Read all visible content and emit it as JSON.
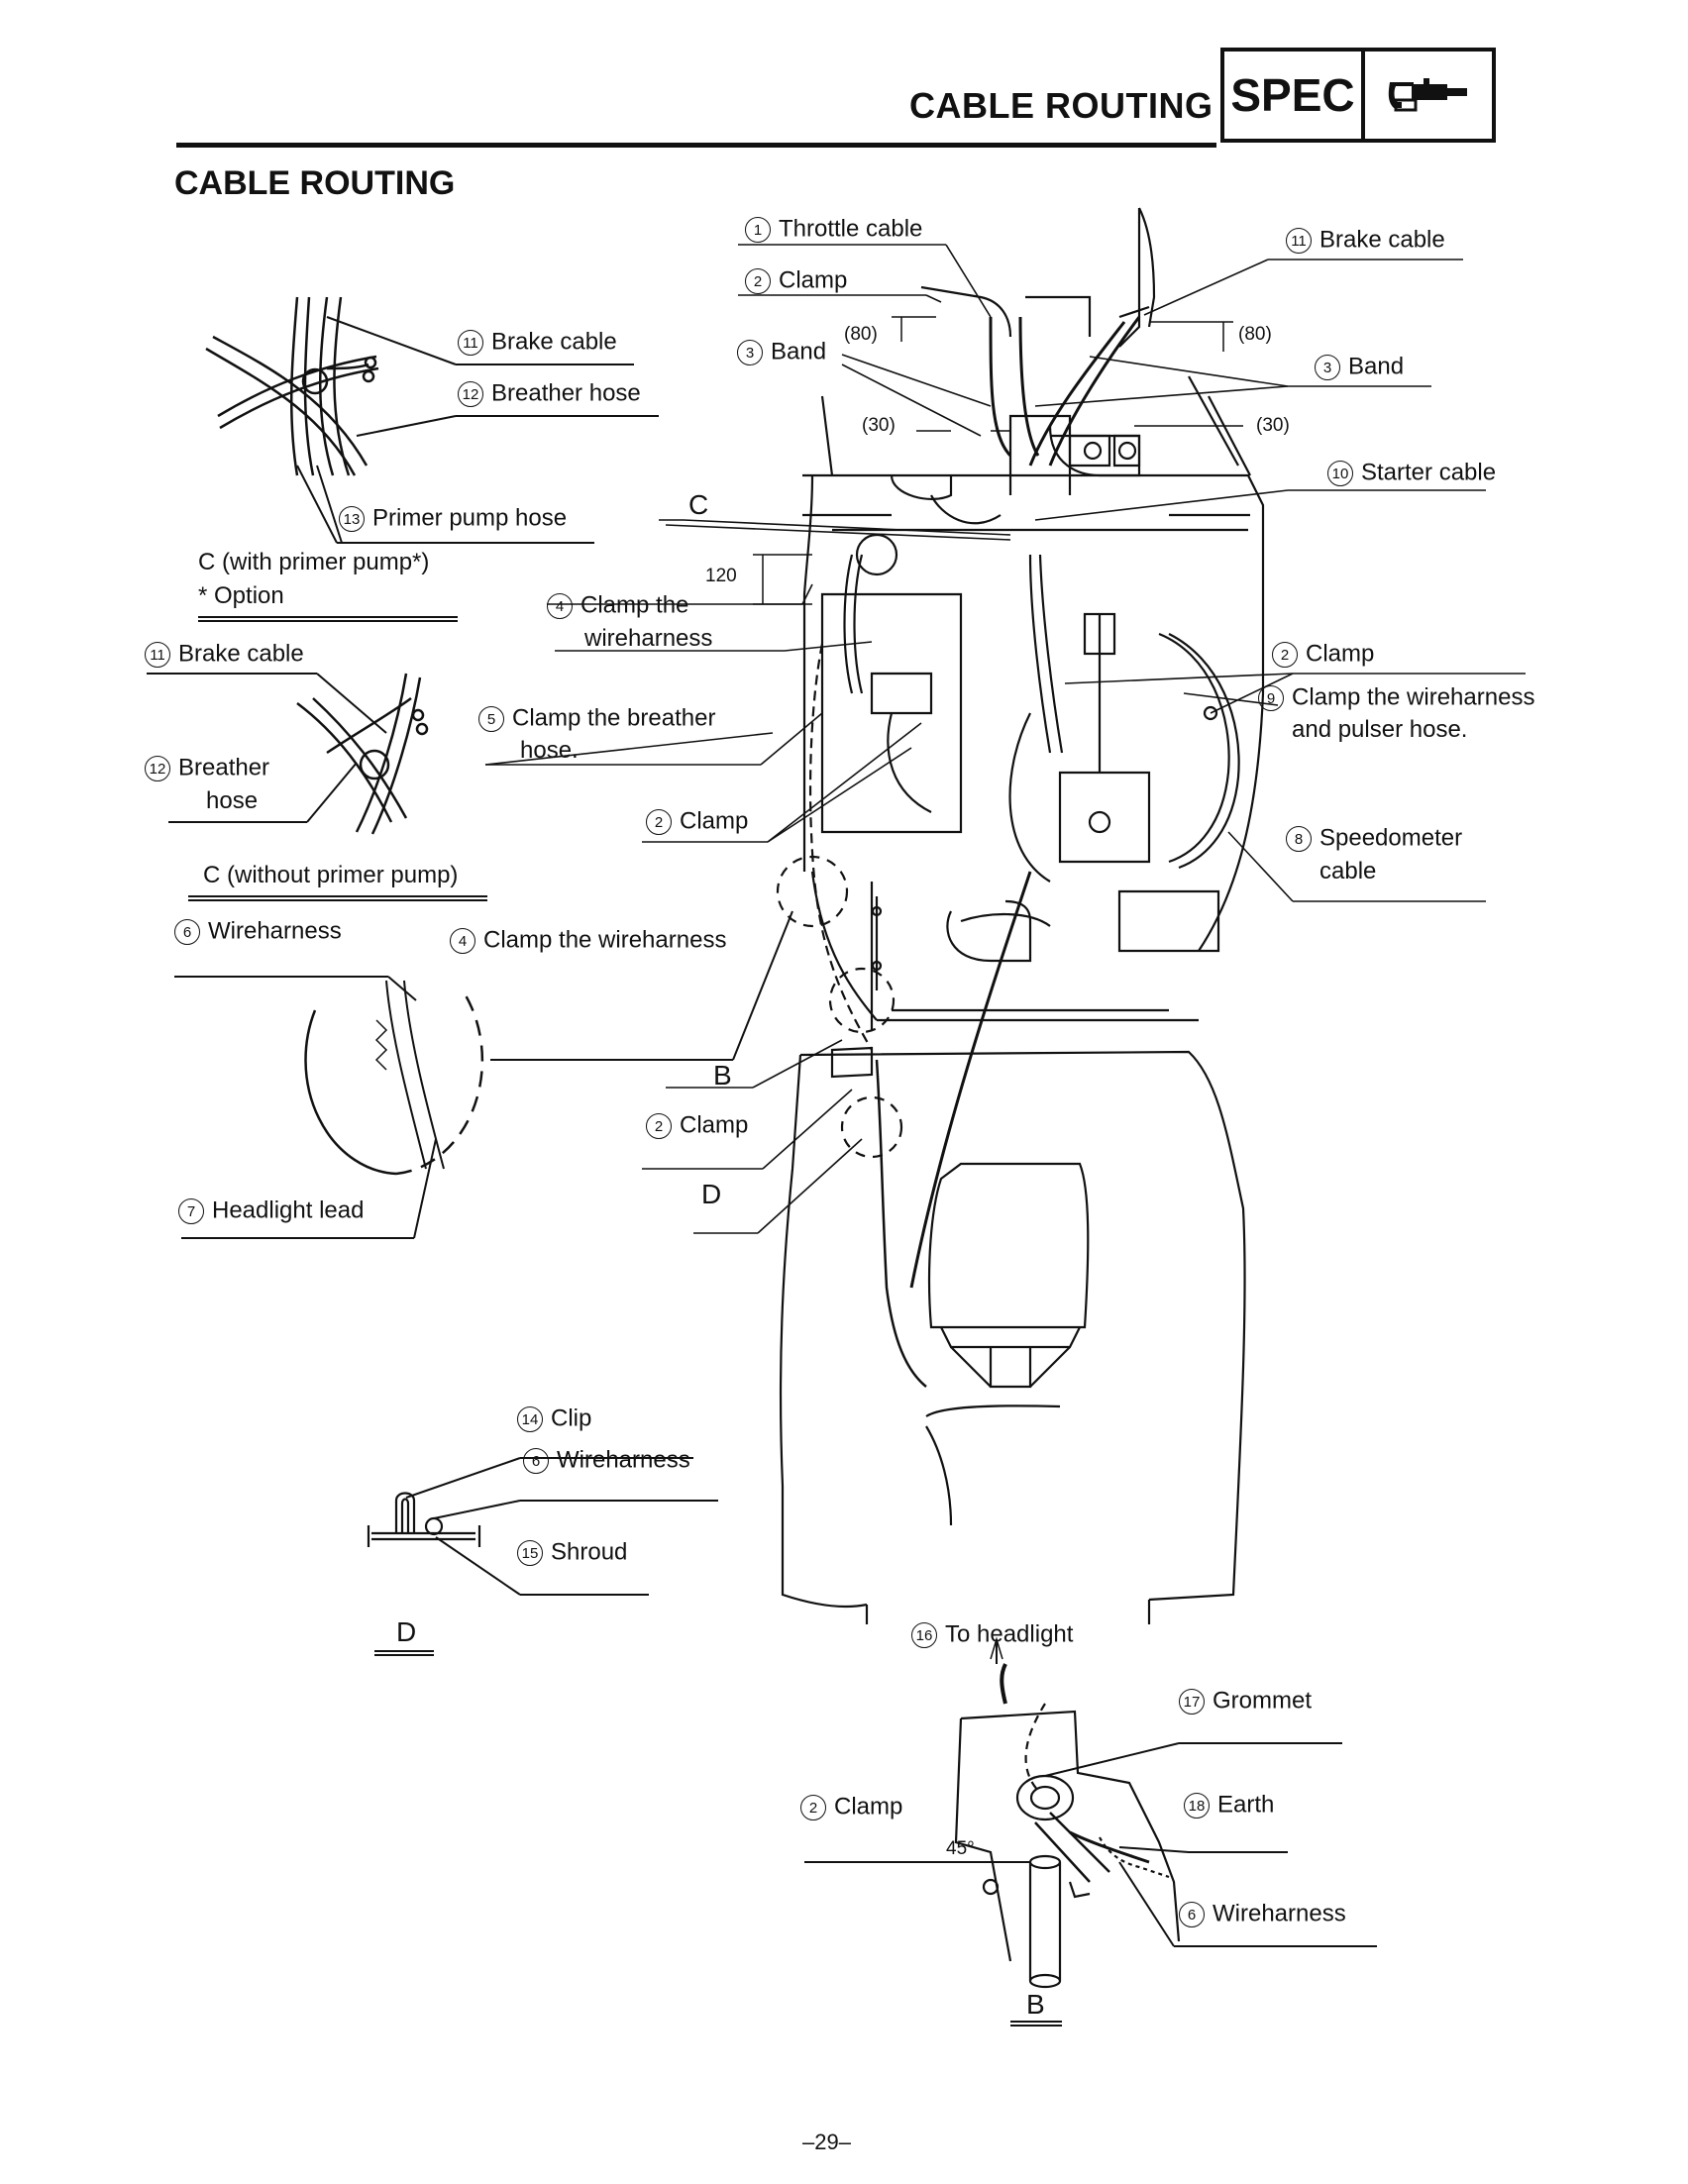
{
  "header": {
    "title": "CABLE ROUTING",
    "spec": "SPEC",
    "icon": "wrench-spec-icon"
  },
  "section_title": "CABLE ROUTING",
  "labels": {
    "throttle_cable": "Throttle cable",
    "clamp": "Clamp",
    "band": "Band",
    "brake_cable": "Brake cable",
    "breather_hose": "Breather hose",
    "breather": "Breather",
    "hose": "hose",
    "primer_pump_hose": "Primer pump hose",
    "c_with_primer": "C (with primer pump*)",
    "option": "* Option",
    "clamp_wireharness": "Clamp the",
    "wireharness_word": "wireharness",
    "clamp_breather": "Clamp the breather",
    "hose_dot": "hose.",
    "c_without_primer": "C (without primer pump)",
    "wireharness": "Wireharness",
    "clamp_the_wireharness": "Clamp the wireharness",
    "headlight_lead": "Headlight lead",
    "starter_cable": "Starter cable",
    "clamp_wire_pulser_1": "Clamp the wireharness",
    "clamp_wire_pulser_2": "and pulser hose.",
    "speedometer": "Speedometer",
    "cable": "cable",
    "clip": "Clip",
    "shroud": "Shroud",
    "to_headlight": "To headlight",
    "grommet": "Grommet",
    "earth": "Earth"
  },
  "nums": {
    "n1": "1",
    "n2": "2",
    "n3": "3",
    "n4": "4",
    "n5": "5",
    "n6": "6",
    "n7": "7",
    "n8": "8",
    "n9": "9",
    "n10": "10",
    "n11": "11",
    "n12": "12",
    "n13": "13",
    "n14": "14",
    "n15": "15",
    "n16": "16",
    "n17": "17",
    "n18": "18"
  },
  "dims": {
    "d80": "(80)",
    "d30": "(30)",
    "d120": "120",
    "d45": "45°"
  },
  "callouts": {
    "c": "C",
    "b": "B",
    "d": "D"
  },
  "page_number": "–29–"
}
